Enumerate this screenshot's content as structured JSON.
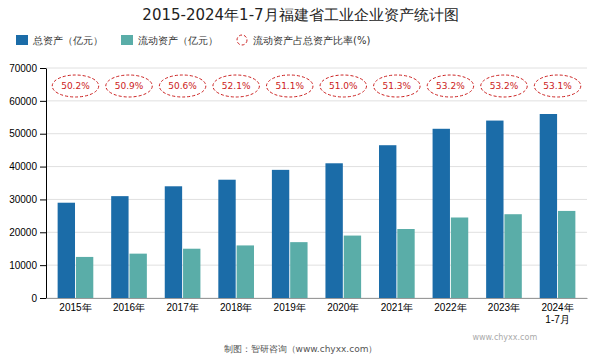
{
  "chart_data": {
    "type": "bar",
    "title": "2015-2024年1-7月福建省工业企业资产统计图",
    "categories": [
      "2015年",
      "2016年",
      "2017年",
      "2018年",
      "2019年",
      "2020年",
      "2021年",
      "2022年",
      "2023年",
      "2024年\n1-7月"
    ],
    "series": [
      {
        "name": "总资产（亿元）",
        "color": "#1b6ca8",
        "values": [
          29000,
          31000,
          34000,
          36000,
          39000,
          41000,
          46500,
          51500,
          54000,
          56000
        ]
      },
      {
        "name": "流动资产（亿元）",
        "color": "#5aada8",
        "values": [
          12500,
          13500,
          15000,
          16000,
          17000,
          19000,
          21000,
          24500,
          25500,
          26500
        ]
      },
      {
        "name": "流动资产占总资产比率(%)",
        "type": "label",
        "marker": "circle",
        "color": "#cc2222",
        "values": [
          50.2,
          50.9,
          50.6,
          52.1,
          51.1,
          51.0,
          51.3,
          53.2,
          53.2,
          53.1
        ],
        "value_labels": [
          "50.2%",
          "50.9%",
          "50.6%",
          "52.1%",
          "51.1%",
          "51.0%",
          "51.3%",
          "53.2%",
          "53.2%",
          "53.1%"
        ]
      }
    ],
    "ylim": [
      0,
      70000
    ],
    "yticks": [
      0,
      10000,
      20000,
      30000,
      40000,
      50000,
      60000,
      70000
    ],
    "grid": true,
    "legend": "upper left",
    "annotations": [
      "制图：智研咨询（www.chyxx.com）",
      "www.chyxx.com"
    ]
  }
}
